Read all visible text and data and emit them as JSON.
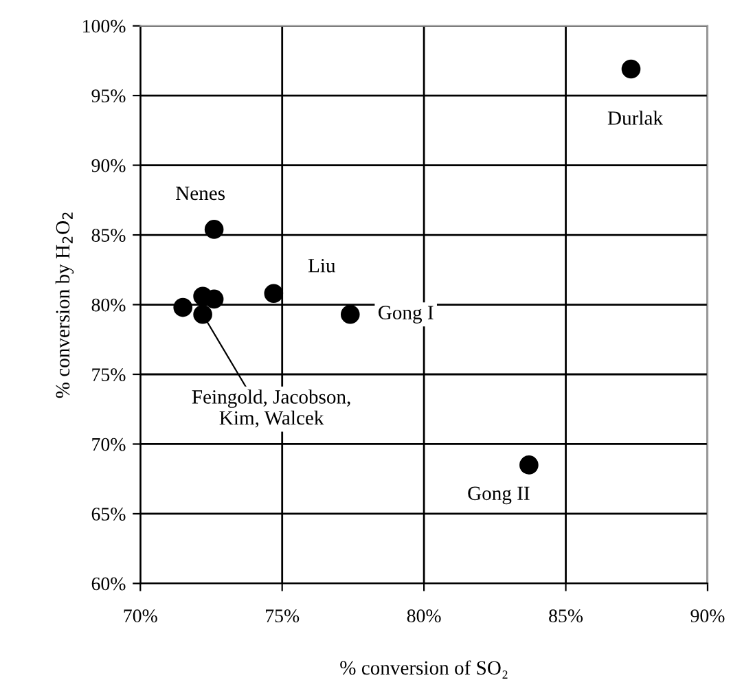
{
  "chart_data": {
    "type": "scatter",
    "xlabel": "% conversion of SO₂",
    "ylabel": "% conversion by H$_{2}$O$_{2}$",
    "series": [
      {
        "color": "#000000",
        "x": [
          87.3,
          72.6,
          74.7,
          77.4,
          83.7,
          71.5,
          72.2,
          72.6,
          72.2
        ],
        "values": [
          96.9,
          85.4,
          80.8,
          79.3,
          68.5,
          79.8,
          80.6,
          80.4,
          79.3
        ]
      }
    ],
    "marker": "circle",
    "grid": true,
    "xlim": [
      70,
      90
    ],
    "ylim": [
      60,
      100
    ],
    "xticks": [
      {
        "value": 70,
        "label": "70%"
      },
      {
        "value": 75,
        "label": "75%"
      },
      {
        "value": 80,
        "label": "80%"
      },
      {
        "value": 85,
        "label": "85%"
      },
      {
        "value": 90,
        "label": "90%"
      }
    ],
    "yticks": [
      {
        "value": 60,
        "label": "60%"
      },
      {
        "value": 65,
        "label": "65%"
      },
      {
        "value": 70,
        "label": "70%"
      },
      {
        "value": 75,
        "label": "75%"
      },
      {
        "value": 80,
        "label": "80%"
      },
      {
        "value": 85,
        "label": "85%"
      },
      {
        "value": 90,
        "label": "90%"
      },
      {
        "value": 95,
        "label": "95%"
      },
      {
        "value": 100,
        "label": "100%"
      }
    ],
    "annotations": [
      {
        "text": "Durlak",
        "x": 87.3,
        "y": 96.9
      },
      {
        "text": "Nenes",
        "x": 72.6,
        "y": 85.4
      },
      {
        "text": "Liu",
        "x": 74.7,
        "y": 80.8
      },
      {
        "text": "Gong I",
        "x": 77.4,
        "y": 79.3
      },
      {
        "text": "Gong II",
        "x": 83.7,
        "y": 68.5
      },
      {
        "text": "Feingold, Jacobson,\nKim, Walcek",
        "x": 72.2,
        "y": 79.3
      }
    ]
  }
}
